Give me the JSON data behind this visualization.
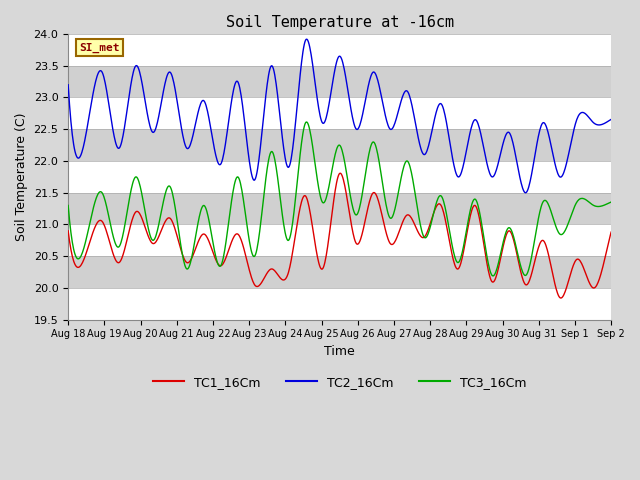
{
  "title": "Soil Temperature at -16cm",
  "xlabel": "Time",
  "ylabel": "Soil Temperature (C)",
  "ylim": [
    19.5,
    24.0
  ],
  "bg_color": "#d8d8d8",
  "plot_bg_color": "#d8d8d8",
  "band_color_light": "#ffffff",
  "band_color_dark": "#d0d0d0",
  "watermark_text": "SI_met",
  "watermark_bg": "#ffffaa",
  "watermark_border": "#996600",
  "watermark_text_color": "#8b0000",
  "legend_entries": [
    "TC1_16Cm",
    "TC2_16Cm",
    "TC3_16Cm"
  ],
  "line_colors": [
    "#dd0000",
    "#0000dd",
    "#00aa00"
  ],
  "n_days": 16,
  "x_tick_labels": [
    "Aug 18",
    "Aug 19",
    "Aug 20",
    "Aug 21",
    "Aug 22",
    "Aug 23",
    "Aug 24",
    "Aug 25",
    "Aug 26",
    "Aug 27",
    "Aug 28",
    "Aug 29",
    "Aug 30",
    "Aug 31",
    "Sep 1",
    "Sep 2"
  ],
  "yticks": [
    19.5,
    20.0,
    20.5,
    21.0,
    21.5,
    22.0,
    22.5,
    23.0,
    23.5,
    24.0
  ],
  "TC1_data": [
    20.9,
    20.5,
    21.05,
    20.4,
    21.2,
    20.7,
    21.1,
    20.4,
    20.85,
    20.35,
    20.85,
    20.05,
    20.3,
    20.25,
    21.45,
    20.3,
    21.8,
    20.7,
    21.5,
    20.7,
    21.15,
    20.8,
    21.3,
    20.3,
    21.3,
    20.1,
    20.9,
    20.05,
    20.75,
    19.85,
    20.45,
    20.0,
    20.85,
    20.8
  ],
  "TC2_data": [
    23.2,
    22.35,
    23.4,
    22.2,
    23.5,
    22.45,
    23.4,
    22.2,
    22.95,
    21.95,
    23.25,
    21.7,
    23.5,
    21.9,
    23.9,
    22.6,
    23.65,
    22.5,
    23.4,
    22.5,
    23.1,
    22.1,
    22.9,
    21.75,
    22.65,
    21.75,
    22.45,
    21.5,
    22.6,
    21.75,
    22.65,
    22.6,
    22.65,
    22.6
  ],
  "TC3_data": [
    21.3,
    20.7,
    21.5,
    20.65,
    21.75,
    20.75,
    21.6,
    20.3,
    21.3,
    20.35,
    21.75,
    20.5,
    22.15,
    20.75,
    22.6,
    21.35,
    22.25,
    21.15,
    22.3,
    21.1,
    22.0,
    20.8,
    21.45,
    20.4,
    21.4,
    20.2,
    20.95,
    20.2,
    21.35,
    20.85,
    21.35,
    21.3,
    21.35,
    21.3
  ]
}
